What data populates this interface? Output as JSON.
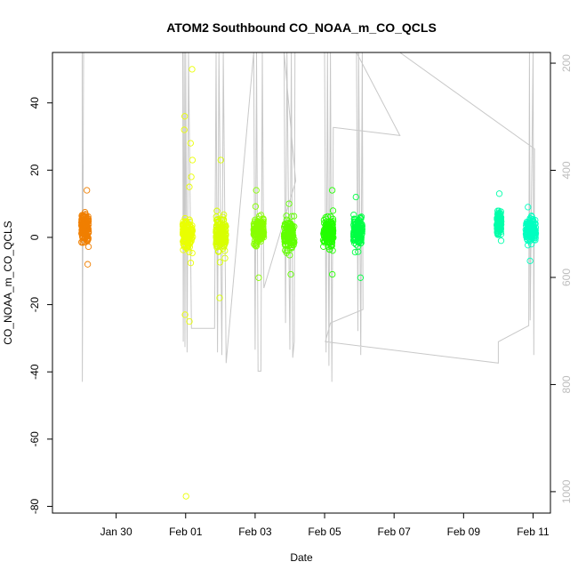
{
  "chart_data": {
    "type": "scatter",
    "title": "ATOM2 Southbound CO_NOAA_m_CO_QCLS",
    "xlabel": "Date",
    "ylabel": "CO_NOAA_m_CO_QCLS",
    "xlim": [
      "2016-01-28T04:00",
      "2016-02-11T12:00"
    ],
    "ylim": [
      -82,
      55
    ],
    "y2lim": [
      1040,
      180
    ],
    "x_ticks": [
      {
        "date": "2016-01-30",
        "label": "Jan 30"
      },
      {
        "date": "2016-02-01",
        "label": "Feb 01"
      },
      {
        "date": "2016-02-03",
        "label": "Feb 03"
      },
      {
        "date": "2016-02-05",
        "label": "Feb 05"
      },
      {
        "date": "2016-02-07",
        "label": "Feb 07"
      },
      {
        "date": "2016-02-09",
        "label": "Feb 09"
      },
      {
        "date": "2016-02-11",
        "label": "Feb 11"
      }
    ],
    "y_ticks": [
      40,
      20,
      0,
      -20,
      -40,
      -60,
      -80
    ],
    "y2_ticks": [
      200,
      400,
      600,
      800,
      1000
    ],
    "grid": false,
    "legend": "none",
    "marker": "open-circle",
    "secondary_line_color": "#c8c8c8",
    "clusters": [
      {
        "start": "2016-01-29T00:00",
        "end": "2016-01-29T05:00",
        "center": 3,
        "spread": 4,
        "max": 14,
        "min": -8,
        "color": "#f07f00"
      },
      {
        "start": "2016-01-31T22:00",
        "end": "2016-02-01T05:00",
        "center": 1,
        "spread": 4.5,
        "max": 50,
        "min": -77,
        "color": "#eaff00"
      },
      {
        "start": "2016-02-01T21:00",
        "end": "2016-02-02T04:00",
        "center": 1,
        "spread": 4.5,
        "max": 23,
        "min": -18,
        "color": "#d8ff00"
      },
      {
        "start": "2016-02-02T23:00",
        "end": "2016-02-03T06:00",
        "center": 2,
        "spread": 4,
        "max": 14,
        "min": -12,
        "color": "#88ff00"
      },
      {
        "start": "2016-02-03T20:00",
        "end": "2016-02-04T03:00",
        "center": 1,
        "spread": 4,
        "max": 10,
        "min": -11,
        "color": "#60ff00"
      },
      {
        "start": "2016-02-04T23:00",
        "end": "2016-02-05T06:00",
        "center": 1,
        "spread": 4,
        "max": 14,
        "min": -11,
        "color": "#22ff00"
      },
      {
        "start": "2016-02-05T20:00",
        "end": "2016-02-06T02:00",
        "center": 2,
        "spread": 4,
        "max": 12,
        "min": -12,
        "color": "#00ff44"
      },
      {
        "start": "2016-02-09T23:00",
        "end": "2016-02-10T02:00",
        "center": 4,
        "spread": 3,
        "max": 13,
        "min": -1,
        "color": "#00ffaa"
      },
      {
        "start": "2016-02-10T19:00",
        "end": "2016-02-11T02:00",
        "center": 2,
        "spread": 3.5,
        "max": 9,
        "min": -7,
        "color": "#00ffc0"
      }
    ],
    "secondary_series": {
      "name": "",
      "points": [
        [
          "2016-01-29T00:30",
          180
        ],
        [
          "2016-01-29T00:40",
          795
        ],
        [
          "2016-01-29T01:30",
          180
        ],
        [
          "2016-01-31T22:00",
          180
        ],
        [
          "2016-01-31T22:20",
          720
        ],
        [
          "2016-01-31T23:00",
          180
        ],
        [
          "2016-01-31T23:30",
          730
        ],
        [
          "2016-02-01T00:00",
          180
        ],
        [
          "2016-02-01T01:00",
          740
        ],
        [
          "2016-02-01T02:00",
          180
        ],
        [
          "2016-02-01T04:00",
          695
        ],
        [
          "2016-02-01T20:00",
          695
        ],
        [
          "2016-02-01T21:00",
          180
        ],
        [
          "2016-02-01T22:00",
          740
        ],
        [
          "2016-02-01T23:00",
          180
        ],
        [
          "2016-02-02T01:00",
          745
        ],
        [
          "2016-02-02T02:00",
          180
        ],
        [
          "2016-02-02T04:00",
          760
        ],
        [
          "2016-02-02T23:00",
          180
        ],
        [
          "2016-02-03T00:00",
          735
        ],
        [
          "2016-02-03T01:00",
          180
        ],
        [
          "2016-02-03T02:00",
          775
        ],
        [
          "2016-02-03T04:00",
          775
        ],
        [
          "2016-02-03T05:00",
          180
        ],
        [
          "2016-02-03T06:00",
          620
        ],
        [
          "2016-02-04T04:00",
          420
        ],
        [
          "2016-02-03T20:00",
          180
        ],
        [
          "2016-02-03T21:00",
          685
        ],
        [
          "2016-02-03T22:00",
          180
        ],
        [
          "2016-02-04T00:00",
          735
        ],
        [
          "2016-02-04T01:00",
          180
        ],
        [
          "2016-02-04T02:00",
          750
        ],
        [
          "2016-02-04T03:00",
          720
        ],
        [
          "2016-02-04T03:30",
          180
        ],
        [
          "2016-02-05T00:00",
          180
        ],
        [
          "2016-02-05T01:00",
          740
        ],
        [
          "2016-02-05T02:00",
          180
        ],
        [
          "2016-02-05T03:00",
          765
        ],
        [
          "2016-02-05T04:00",
          180
        ],
        [
          "2016-02-05T05:00",
          795
        ],
        [
          "2016-02-05T06:00",
          320
        ],
        [
          "2016-02-07T04:00",
          335
        ],
        [
          "2016-02-05T22:00",
          180
        ],
        [
          "2016-02-05T23:00",
          700
        ],
        [
          "2016-02-05T23:30",
          180
        ],
        [
          "2016-02-06T01:00",
          745
        ],
        [
          "2016-02-06T02:00",
          180
        ],
        [
          "2016-02-06T02:30",
          660
        ],
        [
          "2016-02-05T04:00",
          685
        ],
        [
          "2016-02-05T00:30",
          720
        ],
        [
          "2016-02-10T00:00",
          760
        ],
        [
          "2016-02-10T00:00",
          720
        ],
        [
          "2016-02-10T21:00",
          690
        ],
        [
          "2016-02-10T21:30",
          180
        ],
        [
          "2016-02-10T22:00",
          680
        ],
        [
          "2016-02-11T00:00",
          180
        ],
        [
          "2016-02-11T00:30",
          745
        ],
        [
          "2016-02-11T01:00",
          360
        ],
        [
          "2016-02-07T04:00",
          180
        ],
        [
          "2016-02-11T01:00",
          180
        ]
      ]
    }
  }
}
